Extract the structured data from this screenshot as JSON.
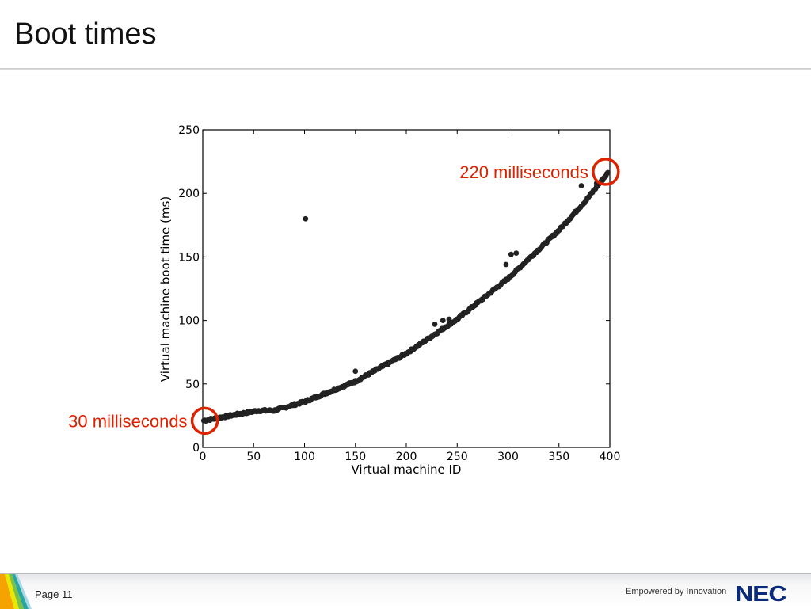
{
  "slide": {
    "title": "Boot times",
    "page_label": "Page 11",
    "tagline": "Empowered by Innovation",
    "logo": "NEC"
  },
  "colors": {
    "points": "#222222",
    "callout": "#dd2200",
    "logo": "#0a2a7a"
  },
  "chart_data": {
    "type": "scatter",
    "title": "",
    "xlabel": "Virtual machine ID",
    "ylabel": "Virtual machine boot time (ms)",
    "xlim": [
      0,
      400
    ],
    "ylim": [
      0,
      250
    ],
    "xticks": [
      0,
      50,
      100,
      150,
      200,
      250,
      300,
      350,
      400
    ],
    "yticks": [
      0,
      50,
      100,
      150,
      200,
      250
    ],
    "grid": false,
    "trend": {
      "description_points": [
        [
          0,
          21
        ],
        [
          40,
          27
        ],
        [
          55,
          29
        ],
        [
          70,
          29
        ],
        [
          100,
          36
        ],
        [
          150,
          52
        ],
        [
          200,
          74
        ],
        [
          250,
          101
        ],
        [
          300,
          133
        ],
        [
          350,
          171
        ],
        [
          375,
          193
        ],
        [
          400,
          218
        ]
      ]
    },
    "outliers": [
      [
        101,
        180
      ],
      [
        150,
        60
      ],
      [
        228,
        97
      ],
      [
        236,
        100
      ],
      [
        242,
        101
      ],
      [
        298,
        144
      ],
      [
        303,
        152
      ],
      [
        308,
        153
      ],
      [
        372,
        206
      ],
      [
        387,
        208
      ]
    ],
    "annotations": [
      {
        "text": "220 milliseconds",
        "x": 396,
        "y": 217
      },
      {
        "text": "30 milliseconds",
        "x": 2,
        "y": 21
      }
    ]
  }
}
